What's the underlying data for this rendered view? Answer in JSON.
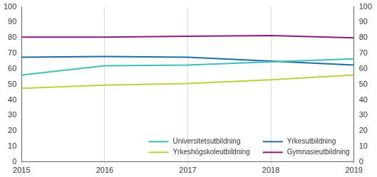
{
  "chart_data": {
    "type": "line",
    "categories": [
      "2015",
      "2016",
      "2017",
      "2018",
      "2019"
    ],
    "series": [
      {
        "name": "Universitetsutbildning",
        "color": "#3fbfb5",
        "values": [
          56,
          62,
          62.5,
          64.5,
          66.5
        ]
      },
      {
        "name": "Yrkesutbildning",
        "color": "#1f6ea6",
        "values": [
          67.5,
          68,
          67.5,
          65,
          62.5
        ]
      },
      {
        "name": "Yrkeshögskoleutbildning",
        "color": "#b7d43a",
        "values": [
          47.5,
          49.5,
          50.5,
          53,
          56
        ]
      },
      {
        "name": "Gymnasieutbildning",
        "color": "#8e1a80",
        "values": [
          80.5,
          80.5,
          81,
          81.5,
          80
        ]
      }
    ],
    "ylim": [
      0,
      100
    ],
    "yticks": [
      0,
      10,
      20,
      30,
      40,
      50,
      60,
      70,
      80,
      90,
      100
    ],
    "y2lim": [
      0,
      100
    ],
    "y2ticks": [
      0,
      10,
      20,
      30,
      40,
      50,
      60,
      70,
      80,
      90,
      100
    ],
    "grid": true,
    "legend": "lower right"
  }
}
